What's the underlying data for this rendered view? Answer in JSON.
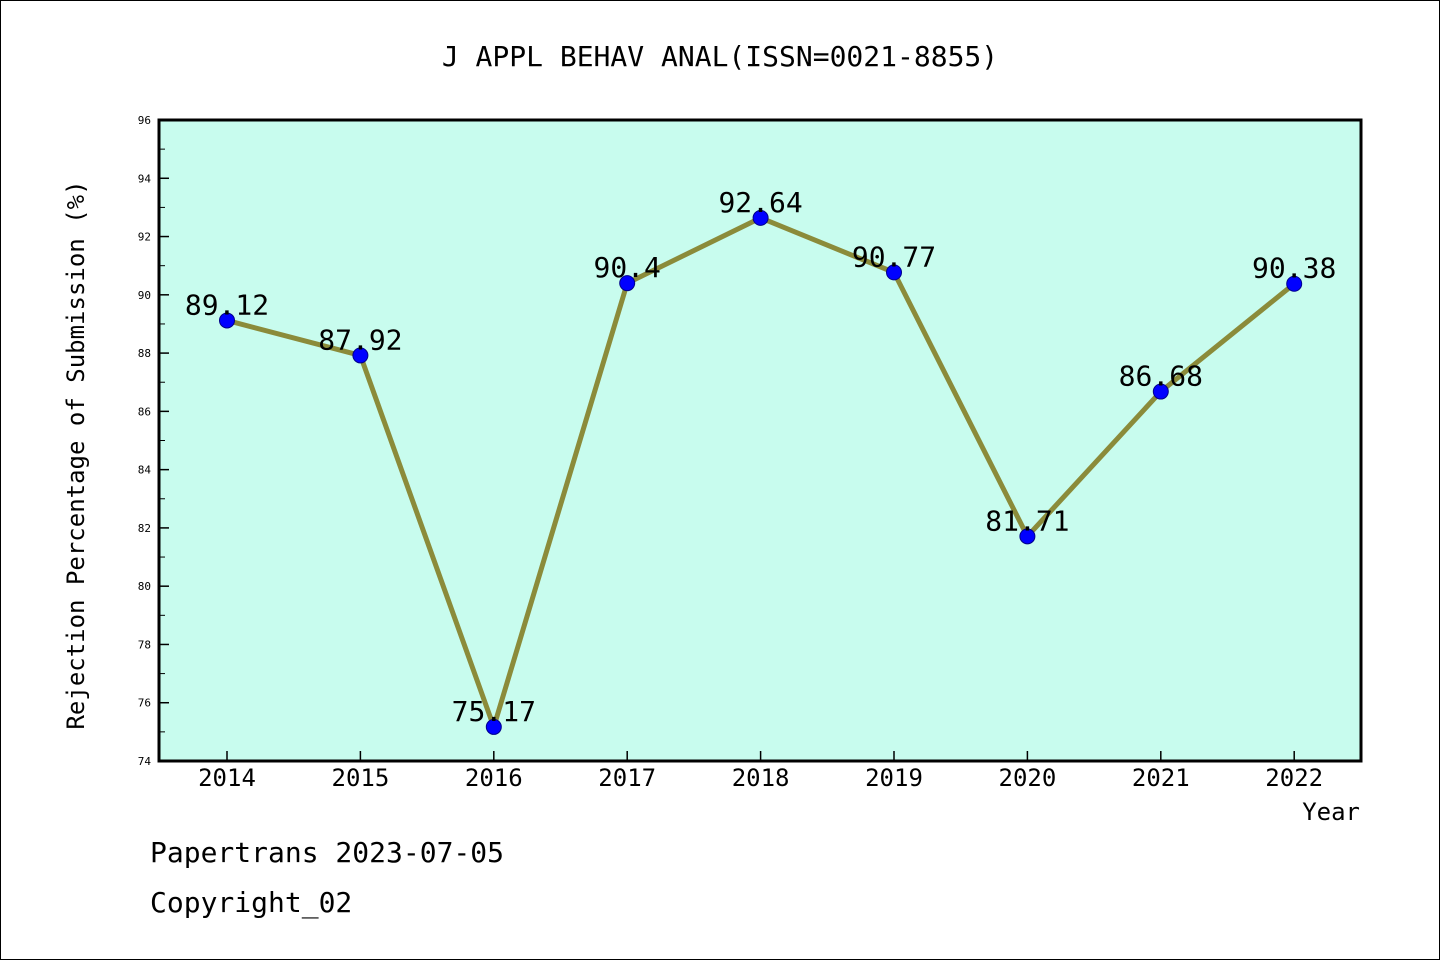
{
  "chart_data": {
    "type": "line",
    "title": "J APPL BEHAV ANAL(ISSN=0021-8855)",
    "xlabel": "Year",
    "ylabel": "Rejection Percentage of Submission (%)",
    "categories": [
      "2014",
      "2015",
      "2016",
      "2017",
      "2018",
      "2019",
      "2020",
      "2021",
      "2022"
    ],
    "values": [
      89.12,
      87.92,
      75.17,
      90.4,
      92.64,
      90.77,
      81.71,
      86.68,
      90.38
    ],
    "data_labels": [
      "89.12",
      "87.92",
      "75.17",
      "90.4",
      "92.64",
      "90.77",
      "81.71",
      "86.68",
      "90.38"
    ],
    "ylim": [
      74,
      96
    ],
    "yticks": [
      "74",
      "76",
      "78",
      "80",
      "82",
      "84",
      "86",
      "88",
      "90",
      "92",
      "94",
      "96"
    ],
    "grid": false,
    "colors": {
      "plot_background": "#c8fcee",
      "line": "#8b8b3a",
      "marker": "#0000ff"
    }
  },
  "footer": {
    "line1": "Papertrans 2023-07-05",
    "line2": "Copyright_02"
  }
}
